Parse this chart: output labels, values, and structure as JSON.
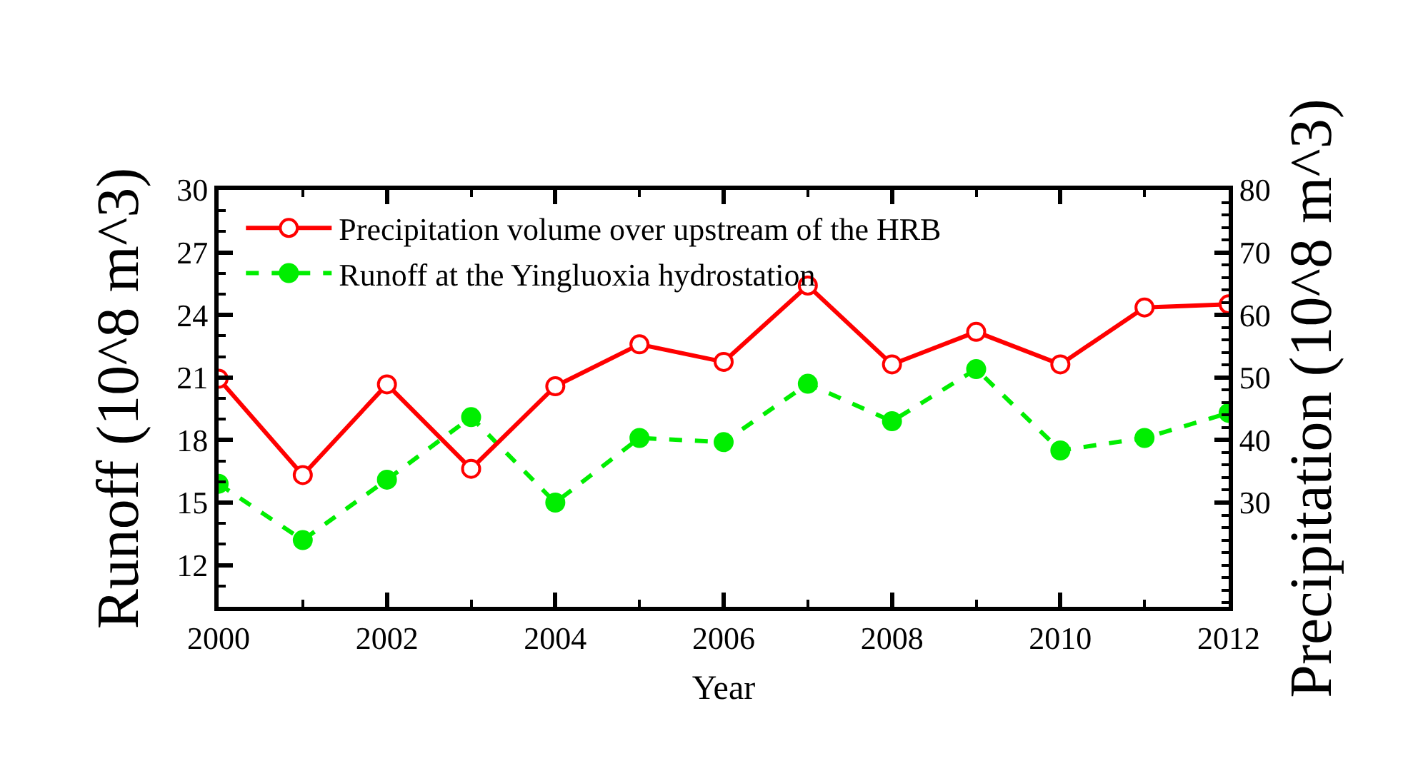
{
  "chart_data": {
    "type": "line",
    "xlabel": "Year",
    "ylabel": "Runoff (10^8 m^3)",
    "y2label": "Precipitation (10^8 m^3)",
    "x": [
      2000,
      2001,
      2002,
      2003,
      2004,
      2005,
      2006,
      2007,
      2008,
      2009,
      2010,
      2011,
      2012
    ],
    "series": [
      {
        "name": "Precipitation volume over upstream of the HRB",
        "color": "#ff0000",
        "axis": "y2",
        "line_style": "solid",
        "values": [
          49.8,
          34.4,
          48.9,
          35.4,
          48.6,
          55.3,
          52.5,
          64.7,
          52.1,
          57.3,
          52.1,
          61.2,
          61.7
        ]
      },
      {
        "name": "Runoff at the Yingluoxia hydrostation",
        "color": "#00ee00",
        "axis": "y",
        "line_style": "dashed",
        "values": [
          15.9,
          13.2,
          16.1,
          19.1,
          15.0,
          18.1,
          17.9,
          20.7,
          18.9,
          21.4,
          17.5,
          18.1,
          19.3
        ]
      }
    ],
    "xlim": [
      2000,
      2012
    ],
    "xticks": [
      2000,
      2002,
      2004,
      2006,
      2008,
      2010,
      2012
    ],
    "ylim": [
      10,
      30
    ],
    "yticks": [
      12,
      15,
      18,
      21,
      24,
      27,
      30
    ],
    "y2lim": [
      13.33,
      80
    ],
    "y2ticks": [
      30,
      40,
      50,
      60,
      70,
      80
    ],
    "marker": "circle",
    "legend": "top left"
  }
}
